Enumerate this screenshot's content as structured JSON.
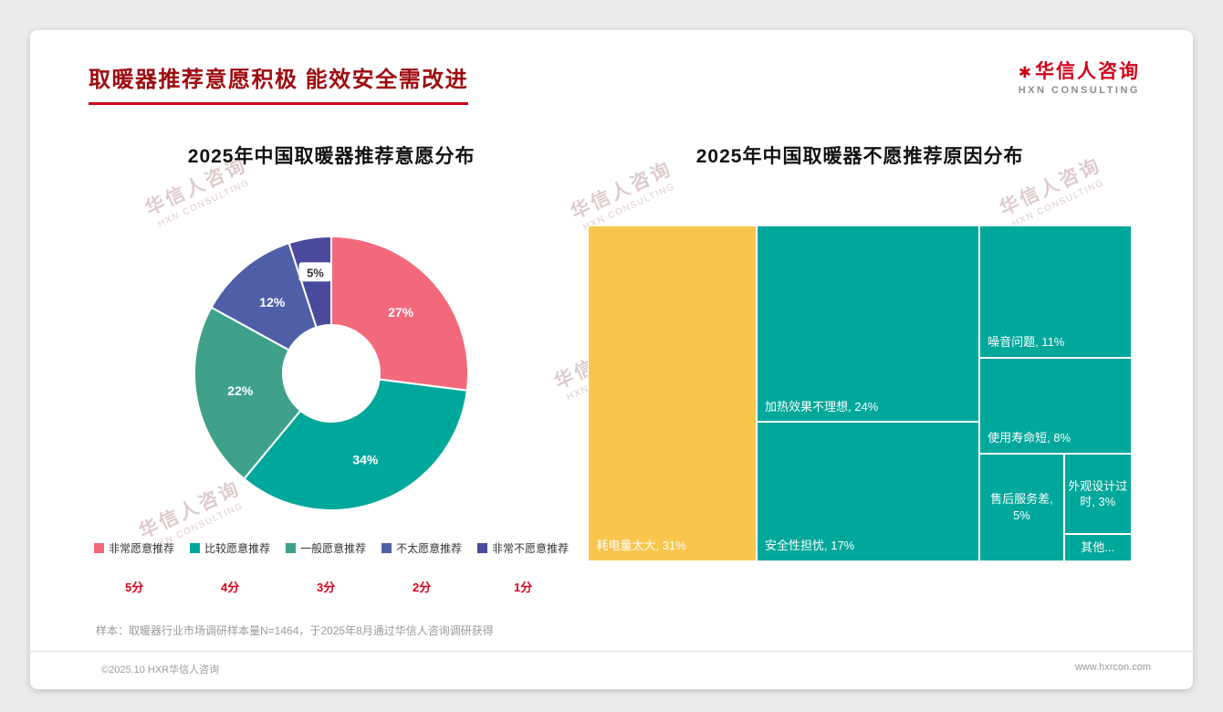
{
  "page": {
    "title": "取暖器推荐意愿积极 能效安全需改进",
    "logo": {
      "mark": "✱",
      "name": "华信人咨询",
      "sub": "HXN CONSULTING"
    },
    "watermark": {
      "line1": "华信人咨询",
      "line2": "HXN CONSULTING"
    },
    "note": "样本：取暖器行业市场调研样本量N=1464，于2025年8月通过华信人咨询调研获得",
    "footer": {
      "left": "©2025.10 HXR华信人咨询",
      "right": "www.hxrcon.com"
    }
  },
  "chart_data": [
    {
      "type": "pie",
      "subtype": "donut",
      "title": "2025年中国取暖器推荐意愿分布",
      "categories": [
        "非常愿意推荐",
        "比较愿意推荐",
        "一般愿意推荐",
        "不太愿意推荐",
        "非常不愿意推荐"
      ],
      "values": [
        27,
        34,
        22,
        12,
        5
      ],
      "colors": [
        "#F2697C",
        "#00A79B",
        "#3FA189",
        "#4F5FA7",
        "#4A4A9C"
      ],
      "scores": [
        "5分",
        "4分",
        "3分",
        "2分",
        "1分"
      ],
      "legend_position": "bottom",
      "start_angle": 0,
      "direction": "clockwise"
    },
    {
      "type": "treemap",
      "title": "2025年中国取暖器不愿推荐原因分布",
      "items": [
        {
          "label": "耗电量太大",
          "value": 31,
          "display": "耗电量太大, 31%",
          "color": "#F9C54C"
        },
        {
          "label": "加热效果不理想",
          "value": 24,
          "display": "加热效果不理想, 24%",
          "color": "#00A79B"
        },
        {
          "label": "安全性担忧",
          "value": 17,
          "display": "安全性担忧, 17%",
          "color": "#00A79B"
        },
        {
          "label": "噪音问题",
          "value": 11,
          "display": "噪音问题, 11%",
          "color": "#00A79B"
        },
        {
          "label": "使用寿命短",
          "value": 8,
          "display": "使用寿命短, 8%",
          "color": "#00A79B"
        },
        {
          "label": "售后服务差",
          "value": 5,
          "display": "售后服务差, 5%",
          "color": "#00A79B"
        },
        {
          "label": "外观设计过时",
          "value": 3,
          "display": "外观设计过时, 3%",
          "color": "#00A79B"
        },
        {
          "label": "其他",
          "value": 1,
          "display": "其他...",
          "color": "#00A79B"
        }
      ]
    }
  ]
}
